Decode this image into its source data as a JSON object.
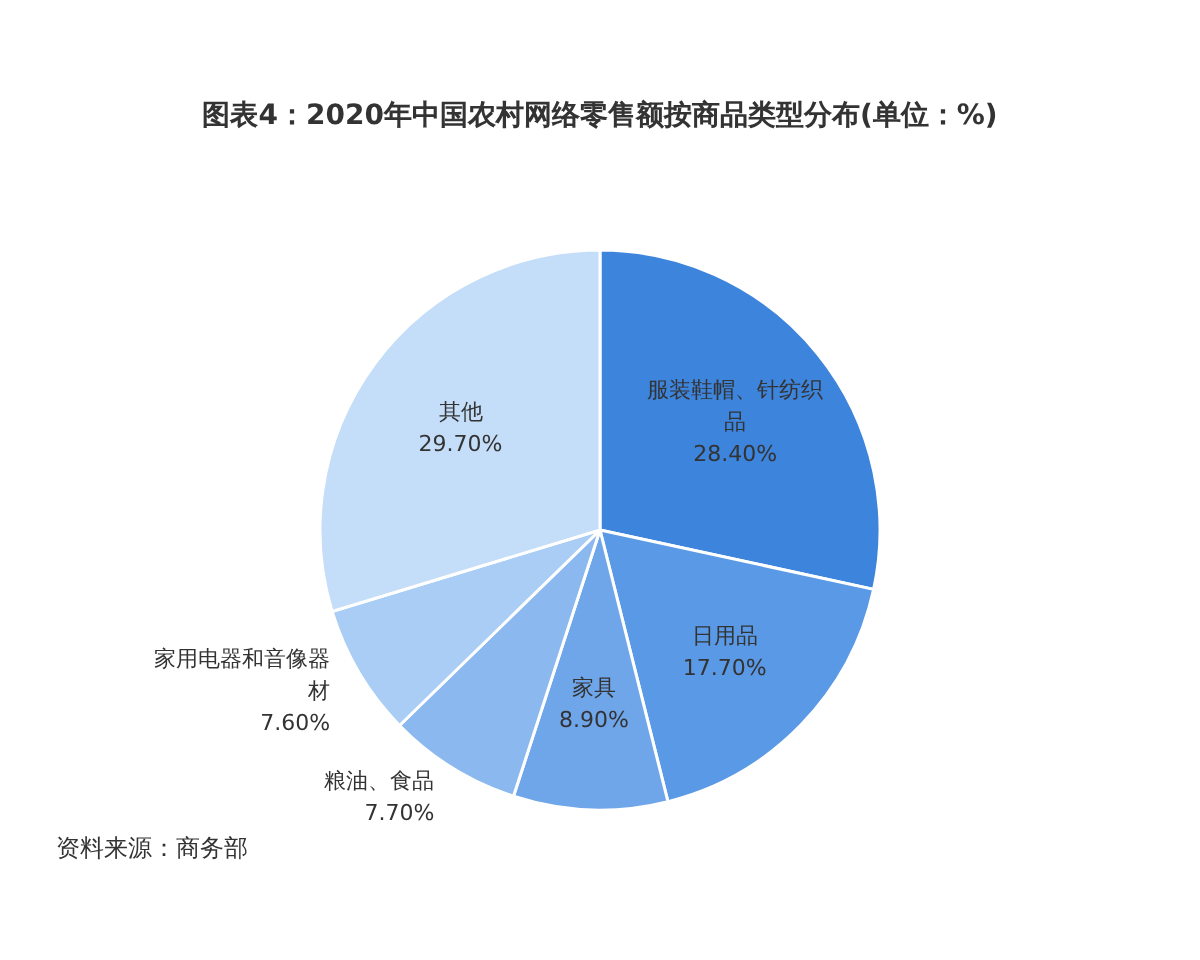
{
  "chart_data": {
    "type": "pie",
    "title": "图表4：2020年中国农村网络零售额按商品类型分布(单位：%)",
    "categories": [
      "服装鞋帽、针纺织品",
      "日用品",
      "家具",
      "粮油、食品",
      "家用电器和音像器材",
      "其他"
    ],
    "values": [
      28.4,
      17.7,
      8.9,
      7.7,
      7.6,
      29.7
    ],
    "colors": [
      "#3d84dc",
      "#5a99e5",
      "#6fa6ea",
      "#8bb9ef",
      "#a9cdf4",
      "#c4ddf8"
    ],
    "value_labels": [
      "28.40%",
      "17.70%",
      "8.90%",
      "7.70%",
      "7.60%",
      "29.70%"
    ],
    "annotations": [
      "资料来源：商务部"
    ]
  }
}
